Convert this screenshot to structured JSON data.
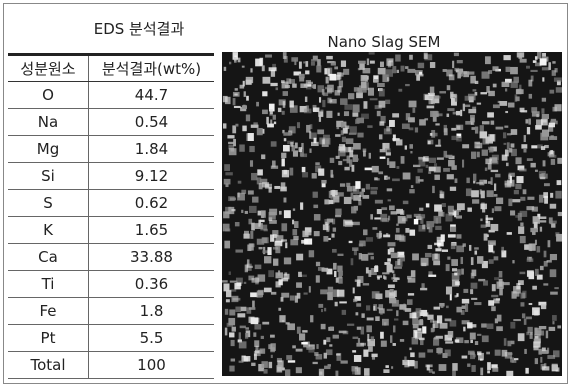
{
  "header": {
    "title": "EDS 분석결과"
  },
  "table": {
    "header": [
      "성분원소",
      "분석결과(wt%)"
    ],
    "rows": [
      [
        "O",
        44.7
      ],
      [
        "Na",
        0.54
      ],
      [
        "Mg",
        1.84
      ],
      [
        "Si",
        9.12
      ],
      [
        "S",
        0.62
      ],
      [
        "K",
        1.65
      ],
      [
        "Ca",
        33.88
      ],
      [
        "Ti",
        0.36
      ],
      [
        "Fe",
        1.8
      ],
      [
        "Pt",
        5.5
      ],
      [
        "Total",
        100
      ]
    ]
  },
  "image": {
    "title": "Nano Slag SEM"
  }
}
